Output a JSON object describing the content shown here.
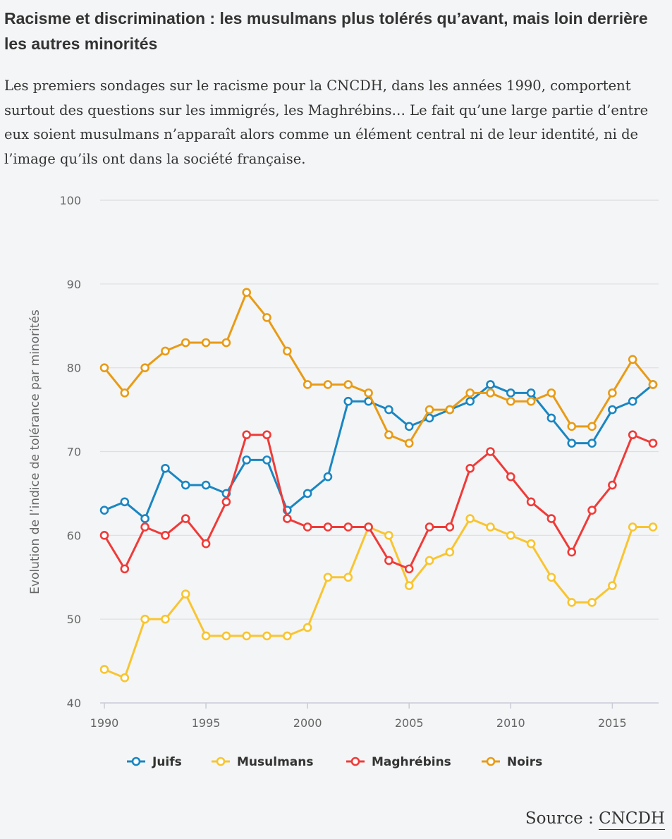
{
  "title": "Racisme et discrimination : les musulmans plus tolérés qu’avant, mais loin derrière les autres minorités",
  "subtitle": "Les premiers sondages sur le racisme pour la CNCDH, dans les années 1990, comportent surtout des questions sur les immigrés, les Maghrébins… Le fait qu’une large partie d’entre eux soient musulmans n’apparaît alors comme un élément central ni de leur identité, ni de l’image qu’ils ont dans la société française.",
  "source": {
    "prefix": "Source : ",
    "link_label": "CNCDH"
  },
  "chart_data": {
    "type": "line",
    "ylabel": "Evolution de l’indice de tolérance par minorités",
    "xlabel": "",
    "ylim": [
      40,
      100
    ],
    "yticks": [
      40,
      50,
      60,
      70,
      80,
      90,
      100
    ],
    "xlim": [
      1990,
      2017
    ],
    "xticks": [
      1990,
      1995,
      2000,
      2005,
      2010,
      2015
    ],
    "grid": true,
    "legend_position": "bottom",
    "x": [
      1990,
      1991,
      1992,
      1993,
      1994,
      1995,
      1996,
      1997,
      1998,
      1999,
      2000,
      2001,
      2002,
      2003,
      2004,
      2005,
      2006,
      2007,
      2008,
      2009,
      2010,
      2011,
      2012,
      2013,
      2014,
      2015,
      2016,
      2017
    ],
    "series": [
      {
        "name": "Juifs",
        "color": "#1a86c2",
        "values": [
          63,
          64,
          62,
          68,
          66,
          66,
          65,
          69,
          69,
          63,
          65,
          67,
          76,
          76,
          75,
          73,
          74,
          75,
          76,
          78,
          77,
          77,
          74,
          71,
          71,
          75,
          76,
          78
        ]
      },
      {
        "name": "Musulmans",
        "color": "#f8c531",
        "values": [
          44,
          43,
          50,
          50,
          53,
          48,
          48,
          48,
          48,
          48,
          49,
          55,
          55,
          61,
          60,
          54,
          57,
          58,
          62,
          61,
          60,
          59,
          55,
          52,
          52,
          54,
          61,
          61
        ]
      },
      {
        "name": "Maghrébins",
        "color": "#ef3b39",
        "values": [
          60,
          56,
          61,
          60,
          62,
          59,
          64,
          72,
          72,
          62,
          61,
          61,
          61,
          61,
          57,
          56,
          61,
          61,
          68,
          70,
          67,
          64,
          62,
          58,
          63,
          66,
          72,
          71
        ]
      },
      {
        "name": "Noirs",
        "color": "#e89b16",
        "values": [
          80,
          77,
          80,
          82,
          83,
          83,
          83,
          89,
          86,
          82,
          78,
          78,
          78,
          77,
          72,
          71,
          75,
          75,
          77,
          77,
          76,
          76,
          77,
          73,
          73,
          77,
          81,
          78
        ]
      }
    ]
  }
}
